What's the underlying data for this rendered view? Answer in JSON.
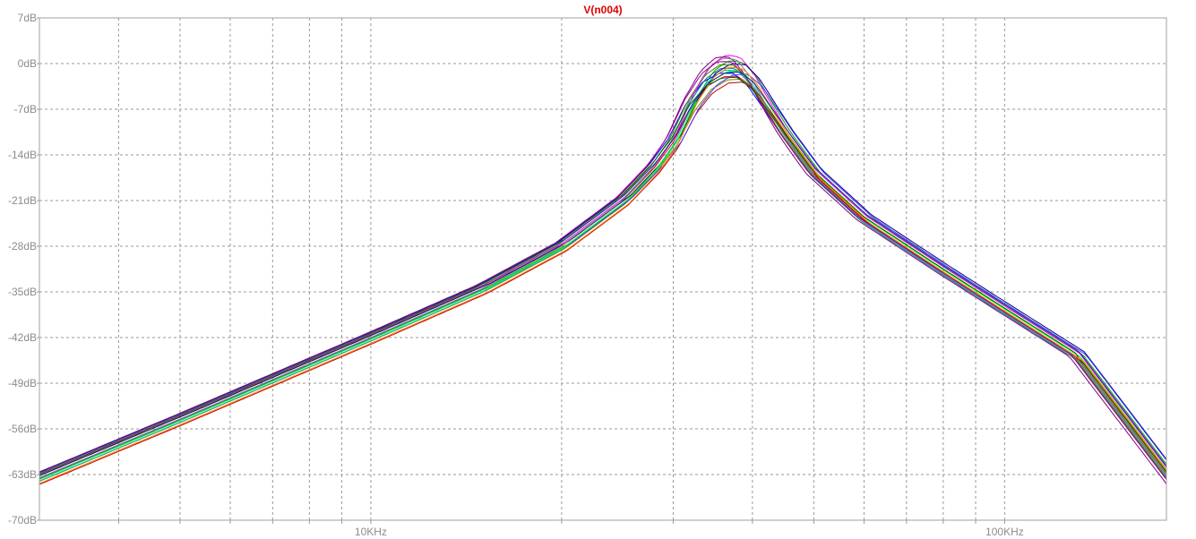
{
  "chart_data": {
    "type": "line",
    "title": "V(n004)",
    "xlabel": "",
    "ylabel": "",
    "x_scale": "log",
    "x_range_hz": [
      3000,
      180000
    ],
    "x_tick_labels": [
      {
        "value": 10000,
        "label": "10KHz"
      },
      {
        "value": 100000,
        "label": "100KHz"
      }
    ],
    "y_range_db": [
      -70,
      7
    ],
    "y_ticks": [
      7,
      0,
      -7,
      -14,
      -21,
      -28,
      -35,
      -42,
      -49,
      -56,
      -63,
      -70
    ],
    "y_tick_labels": [
      "7dB",
      "0dB",
      "-7dB",
      "-14dB",
      "-21dB",
      "-28dB",
      "-35dB",
      "-42dB",
      "-49dB",
      "-56dB",
      "-63dB",
      "-70dB"
    ],
    "grid": true,
    "legend": "none",
    "description_of_series": "Monte Carlo family of bandpass magnitude responses",
    "base_response": {
      "x_hz": [
        3000,
        5000,
        10000,
        15000,
        20000,
        25000,
        28000,
        30000,
        32000,
        34000,
        36000,
        38000,
        40000,
        45000,
        50000,
        60000,
        80000,
        100000,
        130000,
        180000
      ],
      "y_db": [
        -63.5,
        -54.5,
        -42,
        -34.5,
        -28,
        -21,
        -16,
        -12,
        -6.5,
        -3,
        -1.5,
        -1.5,
        -3.5,
        -11,
        -17,
        -24,
        -32,
        -38,
        -45,
        -63
      ]
    },
    "series": [
      {
        "color": "#ff0000",
        "peak_db": -2.0,
        "shift": 0.0,
        "offset_db": 0.0
      },
      {
        "color": "#00a000",
        "peak_db": 0.5,
        "shift": 0.01,
        "offset_db": 0.3
      },
      {
        "color": "#0000ff",
        "peak_db": -1.5,
        "shift": -0.008,
        "offset_db": 0.5
      },
      {
        "color": "#ff00ff",
        "peak_db": 1.3,
        "shift": 0.004,
        "offset_db": 0.6
      },
      {
        "color": "#008080",
        "peak_db": -0.7,
        "shift": -0.004,
        "offset_db": -0.2
      },
      {
        "color": "#808000",
        "peak_db": -2.5,
        "shift": 0.006,
        "offset_db": -0.3
      },
      {
        "color": "#000080",
        "peak_db": 0.0,
        "shift": 0.012,
        "offset_db": 0.8
      },
      {
        "color": "#800080",
        "peak_db": 1.0,
        "shift": -0.012,
        "offset_db": 0.1
      },
      {
        "color": "#00c0c0",
        "peak_db": -1.0,
        "shift": 0.002,
        "offset_db": -0.4
      },
      {
        "color": "#c00000",
        "peak_db": -3.0,
        "shift": 0.008,
        "offset_db": -0.7
      },
      {
        "color": "#408000",
        "peak_db": -0.2,
        "shift": -0.006,
        "offset_db": 0.2
      },
      {
        "color": "#4040ff",
        "peak_db": -1.8,
        "shift": 0.014,
        "offset_db": 0.4
      },
      {
        "color": "#808080",
        "peak_db": 0.8,
        "shift": -0.002,
        "offset_db": -0.1
      },
      {
        "color": "#00ff00",
        "peak_db": -1.2,
        "shift": 0.006,
        "offset_db": 0.0
      },
      {
        "color": "#a000a0",
        "peak_db": 0.3,
        "shift": -0.01,
        "offset_db": 0.5
      },
      {
        "color": "#006000",
        "peak_db": -2.2,
        "shift": -0.003,
        "offset_db": 0.7
      },
      {
        "color": "#ff8000",
        "peak_db": -0.5,
        "shift": 0.009,
        "offset_db": -0.5
      },
      {
        "color": "#2020a0",
        "peak_db": -1.4,
        "shift": 0.003,
        "offset_db": 0.9
      }
    ]
  }
}
